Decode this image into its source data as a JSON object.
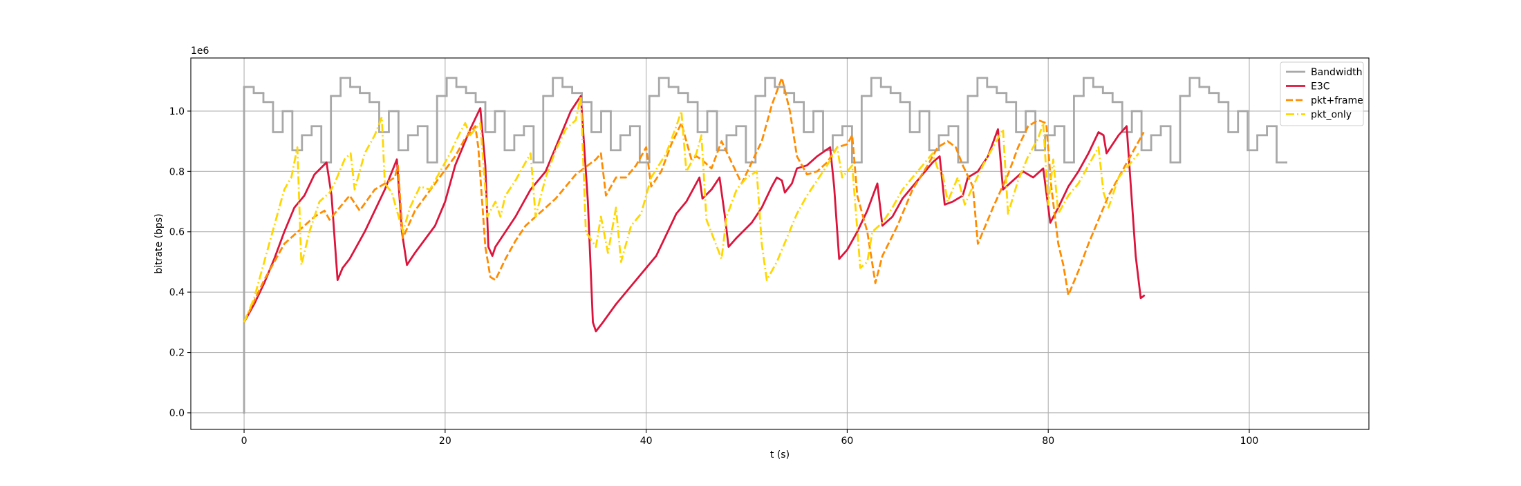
{
  "chart_data": {
    "type": "line",
    "x_label": "t (s)",
    "y_label": "bitrate (bps)",
    "y_offset_label": "1e6",
    "xlim": [
      -5.3,
      111.9
    ],
    "ylim": [
      -55000,
      1176000
    ],
    "xticks": [
      0,
      20,
      40,
      60,
      80,
      100
    ],
    "yticks": [
      {
        "value": 0,
        "label": "0.0"
      },
      {
        "value": 200000,
        "label": "0.2"
      },
      {
        "value": 400000,
        "label": "0.4"
      },
      {
        "value": 600000,
        "label": "0.6"
      },
      {
        "value": 800000,
        "label": "0.8"
      },
      {
        "value": 1000000,
        "label": "1.0"
      }
    ],
    "grid": true,
    "legend_loc": "upper right",
    "series": [
      {
        "name": "Bandwidth",
        "color": "#a8a8a8",
        "drawstyle": "steps-post",
        "linestyle": "solid",
        "x": [
          0,
          0,
          0.96,
          1.92,
          2.88,
          3.84,
          4.8,
          5.76,
          6.72,
          7.68,
          8.64,
          9.6,
          10.56,
          11.52,
          12.48,
          13.44,
          14.4,
          15.36,
          16.32,
          17.28,
          18.24,
          19.2,
          20.16,
          21.12,
          22.08,
          23.04,
          24,
          24.96,
          25.92,
          26.88,
          27.84,
          28.8,
          29.76,
          30.72,
          31.68,
          32.64,
          33.6,
          34.56,
          35.52,
          36.48,
          37.44,
          38.4,
          39.36,
          40.32,
          41.28,
          42.24,
          43.2,
          44.16,
          45.12,
          46.08,
          47.04,
          48,
          48.96,
          49.92,
          50.88,
          51.84,
          52.8,
          53.76,
          54.72,
          55.68,
          56.64,
          57.6,
          58.56,
          59.52,
          60.48,
          61.44,
          62.4,
          63.36,
          64.32,
          65.28,
          66.24,
          67.2,
          68.16,
          69.12,
          70.08,
          71.04,
          72,
          72.96,
          73.92,
          74.88,
          75.84,
          76.8,
          77.76,
          78.72,
          79.68,
          80.64,
          81.6,
          82.56,
          83.52,
          84.48,
          85.44,
          86.4,
          87.36,
          88.32,
          89.28,
          90.24,
          91.2,
          92.16,
          93.12,
          94.08,
          95.04,
          96,
          96.96,
          97.92,
          98.88,
          99.84,
          100.8,
          101.76,
          102.72,
          103.68
        ],
        "values": [
          0,
          1080000,
          1060000,
          1030000,
          930000,
          1000000,
          870000,
          920000,
          950000,
          830000,
          1050000,
          1110000,
          1080000,
          1060000,
          1030000,
          930000,
          1000000,
          870000,
          920000,
          950000,
          830000,
          1050000,
          1110000,
          1080000,
          1060000,
          1030000,
          930000,
          1000000,
          870000,
          920000,
          950000,
          830000,
          1050000,
          1110000,
          1080000,
          1060000,
          1030000,
          930000,
          1000000,
          870000,
          920000,
          950000,
          830000,
          1050000,
          1110000,
          1080000,
          1060000,
          1030000,
          930000,
          1000000,
          870000,
          920000,
          950000,
          830000,
          1050000,
          1110000,
          1080000,
          1060000,
          1030000,
          930000,
          1000000,
          870000,
          920000,
          950000,
          830000,
          1050000,
          1110000,
          1080000,
          1060000,
          1030000,
          930000,
          1000000,
          870000,
          920000,
          950000,
          830000,
          1050000,
          1110000,
          1080000,
          1060000,
          1030000,
          930000,
          1000000,
          870000,
          920000,
          950000,
          830000,
          1050000,
          1110000,
          1080000,
          1060000,
          1030000,
          930000,
          1000000,
          870000,
          920000,
          950000,
          830000,
          1050000,
          1110000,
          1080000,
          1060000,
          1030000,
          930000,
          1000000,
          870000,
          920000,
          950000,
          830000,
          830000
        ]
      },
      {
        "name": "E3C",
        "color": "#dc143c",
        "drawstyle": "default",
        "linestyle": "solid",
        "x": [
          0,
          1,
          2,
          3,
          4,
          5,
          5.5,
          6,
          7,
          8.2,
          8.7,
          9.3,
          9.8,
          10.5,
          12,
          14,
          15.2,
          15.7,
          16.2,
          17,
          19,
          20,
          21,
          22.5,
          23.5,
          24,
          24.3,
          24.7,
          25,
          27,
          28.5,
          30,
          31.5,
          32.5,
          33.5,
          34.2,
          34.7,
          35,
          35.7,
          37,
          39,
          40,
          41,
          42,
          43,
          44,
          45.3,
          45.6,
          46.5,
          47.3,
          47.8,
          48.2,
          49,
          50.5,
          51.5,
          52.5,
          53,
          53.5,
          53.8,
          54.5,
          55,
          56,
          57,
          58.3,
          58.7,
          59.2,
          60,
          61,
          62,
          63,
          63.5,
          64.5,
          65.5,
          67,
          68.5,
          69.2,
          69.7,
          70.5,
          71.5,
          72,
          73,
          74,
          75,
          75.5,
          76.5,
          77.5,
          78.5,
          79.5,
          80.2,
          81,
          82,
          83,
          84,
          85,
          85.5,
          85.8,
          87,
          87.8,
          88.7,
          89.2,
          89.6
        ],
        "values": [
          300000,
          360000,
          430000,
          510000,
          600000,
          680000,
          700000,
          720000,
          790000,
          830000,
          720000,
          440000,
          480000,
          510000,
          600000,
          740000,
          840000,
          600000,
          490000,
          530000,
          620000,
          700000,
          820000,
          940000,
          1010000,
          820000,
          550000,
          520000,
          550000,
          650000,
          740000,
          800000,
          920000,
          1000000,
          1050000,
          700000,
          300000,
          270000,
          300000,
          360000,
          440000,
          480000,
          520000,
          590000,
          660000,
          700000,
          780000,
          710000,
          740000,
          780000,
          660000,
          550000,
          580000,
          630000,
          680000,
          750000,
          780000,
          770000,
          730000,
          760000,
          810000,
          820000,
          850000,
          880000,
          750000,
          510000,
          540000,
          600000,
          670000,
          760000,
          620000,
          650000,
          710000,
          770000,
          830000,
          850000,
          690000,
          700000,
          720000,
          780000,
          800000,
          850000,
          940000,
          740000,
          770000,
          800000,
          780000,
          810000,
          630000,
          680000,
          750000,
          800000,
          860000,
          930000,
          920000,
          860000,
          920000,
          950000,
          520000,
          380000,
          390000
        ]
      },
      {
        "name": "pkt+frame",
        "color": "#ff8c00",
        "drawstyle": "default",
        "linestyle": "dashed",
        "x": [
          0,
          2,
          4,
          5,
          6,
          7,
          8,
          8.5,
          10,
          10.5,
          11.5,
          13,
          14,
          15,
          15.3,
          15.8,
          17,
          19,
          21,
          22,
          23,
          23.3,
          24,
          24.5,
          25,
          26,
          27,
          28,
          29,
          31,
          33,
          35,
          35.5,
          36,
          36.5,
          37,
          38,
          39,
          40,
          40.5,
          41.5,
          42.5,
          43.5,
          44.5,
          45,
          45.5,
          46.5,
          47.5,
          48.5,
          49.5,
          50.5,
          51.5,
          52.5,
          53.5,
          54.3,
          55,
          56,
          57,
          58,
          59,
          60,
          60.5,
          61,
          62,
          62.8,
          63.5,
          65,
          66.5,
          68,
          69,
          70,
          70.8,
          71.5,
          72.5,
          73,
          74.5,
          76,
          77,
          78,
          79,
          79.8,
          80.3,
          81,
          81.5,
          82,
          83,
          84,
          85,
          86,
          87,
          88,
          89,
          89.5
        ],
        "values": [
          300000,
          440000,
          560000,
          590000,
          620000,
          650000,
          670000,
          640000,
          700000,
          720000,
          670000,
          740000,
          760000,
          780000,
          820000,
          580000,
          670000,
          760000,
          850000,
          910000,
          950000,
          880000,
          550000,
          450000,
          440000,
          510000,
          570000,
          620000,
          650000,
          710000,
          790000,
          840000,
          860000,
          720000,
          750000,
          780000,
          780000,
          820000,
          880000,
          750000,
          800000,
          890000,
          960000,
          840000,
          850000,
          840000,
          810000,
          900000,
          830000,
          760000,
          830000,
          900000,
          1020000,
          1110000,
          1000000,
          850000,
          790000,
          800000,
          830000,
          880000,
          890000,
          920000,
          720000,
          600000,
          430000,
          520000,
          620000,
          740000,
          820000,
          880000,
          900000,
          880000,
          820000,
          750000,
          560000,
          680000,
          790000,
          880000,
          950000,
          970000,
          960000,
          750000,
          560000,
          490000,
          390000,
          470000,
          560000,
          640000,
          720000,
          780000,
          840000,
          900000,
          930000
        ]
      },
      {
        "name": "pkt_only",
        "color": "#ffd700",
        "drawstyle": "default",
        "linestyle": "dashdot",
        "x": [
          0,
          1,
          2,
          3,
          4,
          4.7,
          5.3,
          5.7,
          6.5,
          7.5,
          8.5,
          9,
          10,
          10.6,
          11,
          12,
          13,
          13.7,
          14,
          14.7,
          15.8,
          16.5,
          17.5,
          18.5,
          19.5,
          20.5,
          21.5,
          22,
          22.5,
          23,
          23.5,
          24.2,
          25,
          25.5,
          26,
          27,
          28,
          28.5,
          29,
          30,
          31,
          32,
          33,
          33.5,
          34,
          35,
          35.5,
          36.2,
          37,
          37.5,
          38.5,
          39.5,
          40.5,
          42,
          43,
          43.5,
          44,
          45,
          45.5,
          46,
          47.5,
          48,
          49,
          50,
          51,
          51.5,
          52,
          53,
          54,
          55,
          56,
          57,
          58,
          59,
          59.5,
          60,
          60.5,
          61.3,
          62,
          62.5,
          63.5,
          64.5,
          65.5,
          66.5,
          67.5,
          68.5,
          69,
          69.5,
          70,
          71,
          71.7,
          72.5,
          73.5,
          74.5,
          75.5,
          76,
          77,
          78,
          79,
          79.5,
          80,
          80.5,
          81,
          82,
          83,
          84,
          85,
          85.5,
          86,
          87,
          88,
          89
        ],
        "values": [
          300000,
          380000,
          500000,
          620000,
          740000,
          780000,
          880000,
          490000,
          600000,
          700000,
          730000,
          760000,
          840000,
          860000,
          740000,
          860000,
          920000,
          980000,
          760000,
          730000,
          600000,
          680000,
          750000,
          740000,
          800000,
          860000,
          930000,
          960000,
          920000,
          940000,
          960000,
          650000,
          700000,
          650000,
          720000,
          770000,
          830000,
          860000,
          650000,
          780000,
          870000,
          940000,
          970000,
          1050000,
          600000,
          550000,
          650000,
          530000,
          680000,
          500000,
          620000,
          660000,
          780000,
          860000,
          950000,
          1000000,
          800000,
          860000,
          920000,
          640000,
          510000,
          650000,
          740000,
          780000,
          800000,
          560000,
          440000,
          500000,
          580000,
          660000,
          720000,
          770000,
          820000,
          880000,
          780000,
          800000,
          820000,
          480000,
          500000,
          600000,
          630000,
          680000,
          740000,
          780000,
          820000,
          860000,
          810000,
          790000,
          700000,
          780000,
          690000,
          750000,
          820000,
          880000,
          940000,
          660000,
          770000,
          850000,
          910000,
          960000,
          690000,
          840000,
          660000,
          720000,
          760000,
          820000,
          880000,
          730000,
          680000,
          780000,
          820000,
          860000
        ]
      }
    ]
  }
}
